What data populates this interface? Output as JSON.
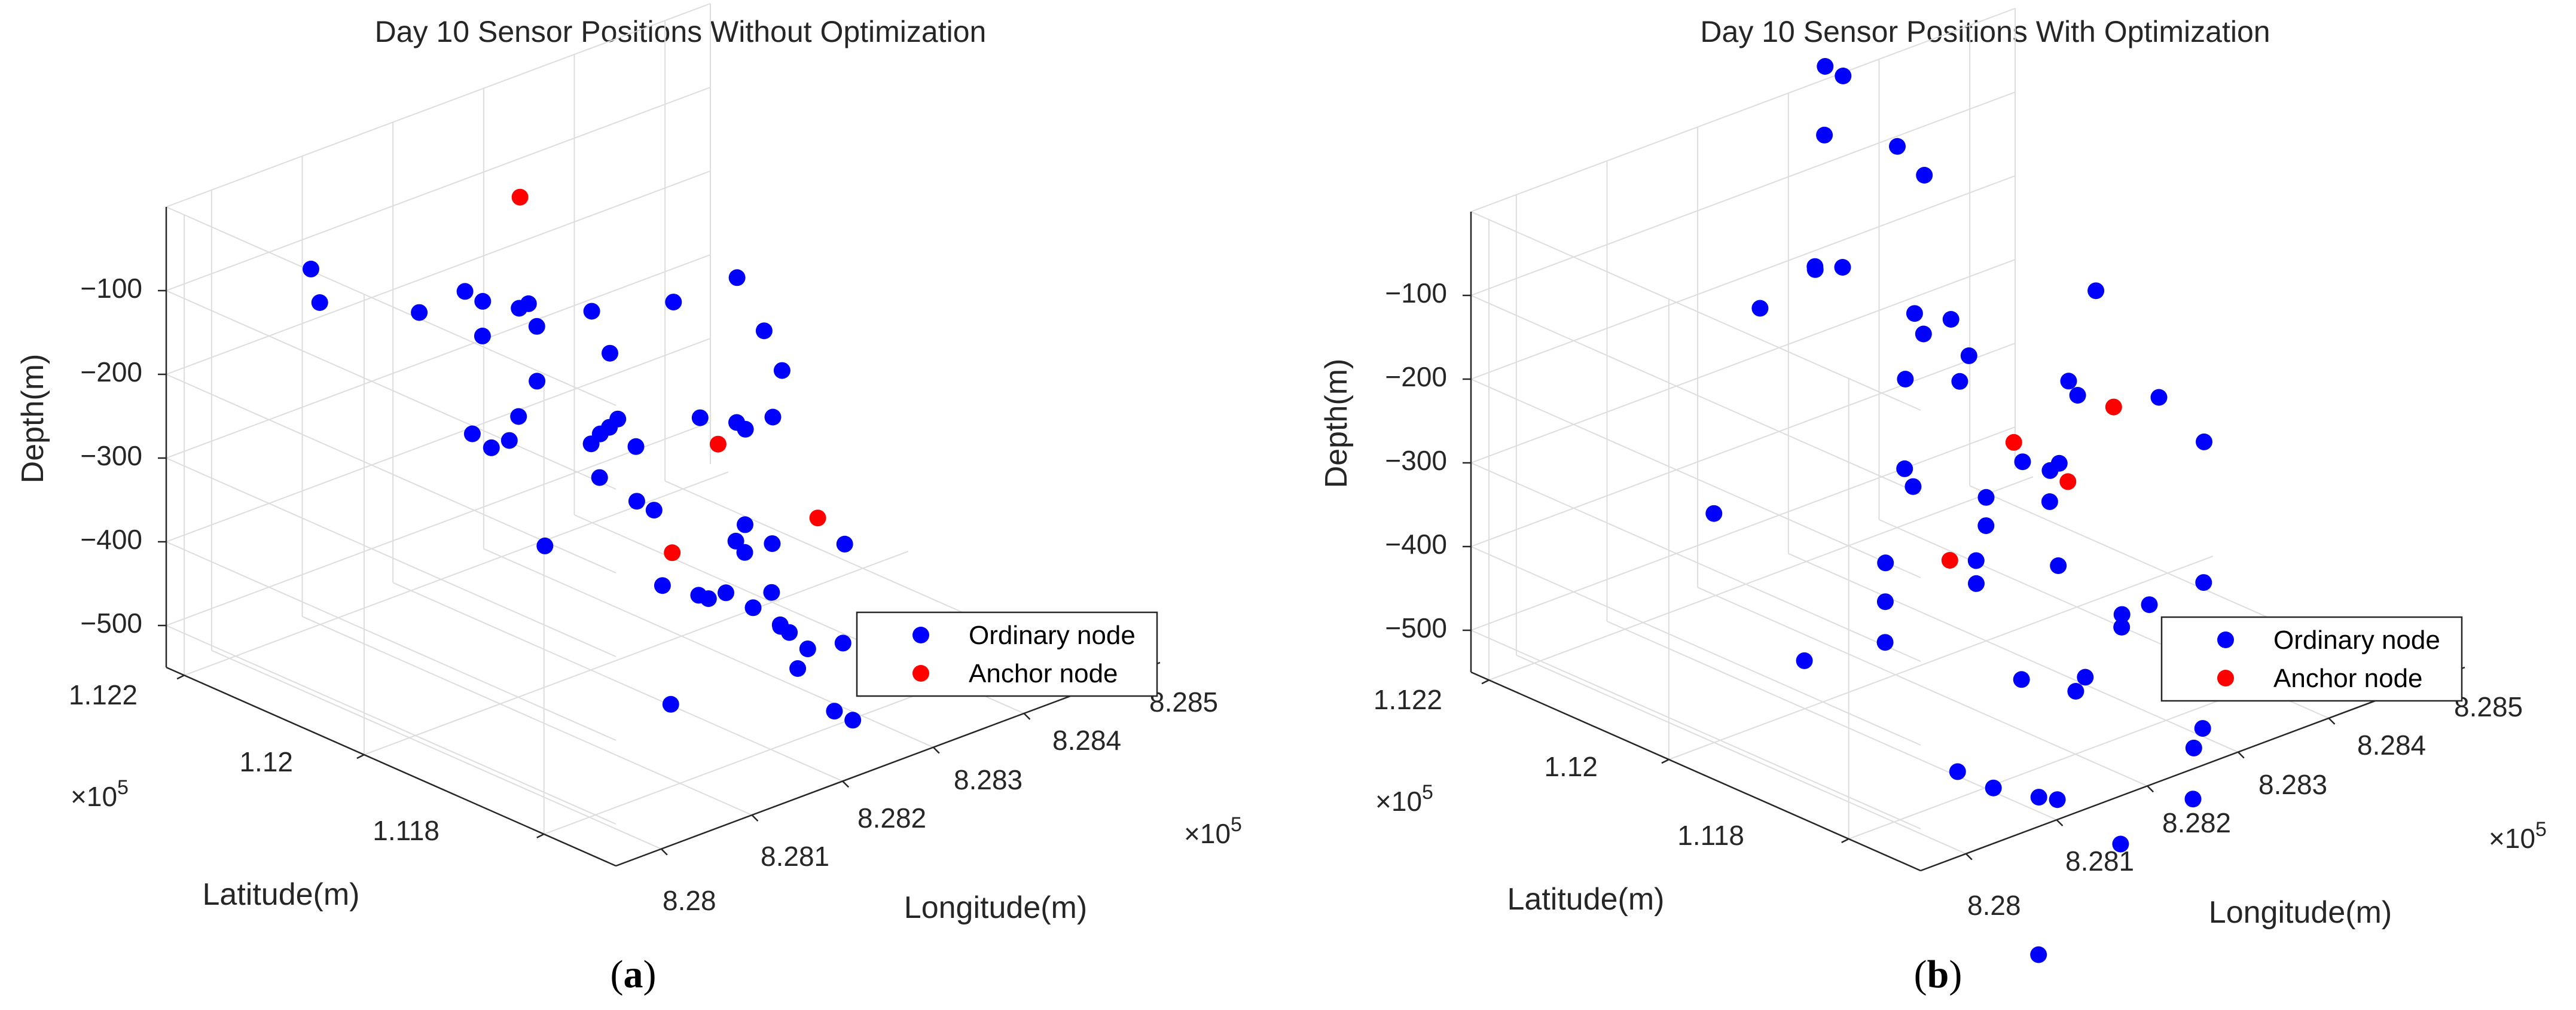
{
  "colors": {
    "ordinary": "#0000ff",
    "anchor": "#ff0000",
    "grid": "#dddddd",
    "axis": "#262626"
  },
  "chart_data": [
    {
      "type": "scatter",
      "title": "Day 10 Sensor Positions Without Optimization",
      "panel_label": "(a)",
      "panel_letter": "a",
      "xlabel": "Longitude(m)",
      "ylabel": "Latitude(m)",
      "zlabel": "Depth(m)",
      "x_multiplier": "×10",
      "x_exponent": "5",
      "y_multiplier": "×10",
      "y_exponent": "5",
      "x_ticks": [
        "8.28",
        "8.281",
        "8.282",
        "8.283",
        "8.284",
        "8.285"
      ],
      "y_ticks": [
        "1.118",
        "1.12",
        "1.122"
      ],
      "z_ticks": [
        "−100",
        "−200",
        "−300",
        "−400",
        "−500"
      ],
      "xlim": [
        8.2795,
        8.2855
      ],
      "ylim": [
        1.1172,
        1.1222
      ],
      "zlim": [
        -550,
        0
      ],
      "grid": true,
      "legend_position": "lower-right",
      "series": [
        {
          "name": "Ordinary node",
          "marker": "ordinary",
          "points": [
            [
              8.2799,
              1.1192,
              -145
            ],
            [
              8.2803,
              1.1213,
              -104
            ],
            [
              8.2806,
              1.1217,
              -95
            ],
            [
              8.2807,
              1.1178,
              -434
            ],
            [
              8.2808,
              1.1193,
              -320
            ],
            [
              8.2811,
              1.121,
              -134
            ],
            [
              8.2813,
              1.1202,
              -257
            ],
            [
              8.2814,
              1.1205,
              -284
            ],
            [
              8.2816,
              1.1204,
              -250
            ],
            [
              8.2815,
              1.1207,
              -164
            ],
            [
              8.2816,
              1.1188,
              -376
            ],
            [
              8.2817,
              1.1196,
              -289
            ],
            [
              8.2818,
              1.121,
              -149
            ],
            [
              8.2819,
              1.1187,
              -395
            ],
            [
              8.282,
              1.1197,
              -236
            ],
            [
              8.282,
              1.1206,
              -168
            ],
            [
              8.2822,
              1.1197,
              -277
            ],
            [
              8.2821,
              1.1215,
              -173
            ],
            [
              8.2821,
              1.1178,
              -448
            ],
            [
              8.2822,
              1.1208,
              -251
            ],
            [
              8.2823,
              1.1188,
              -413
            ],
            [
              8.2824,
              1.1197,
              -361
            ],
            [
              8.2824,
              1.1212,
              -191
            ],
            [
              8.2824,
              1.1204,
              -315
            ],
            [
              8.2825,
              1.1177,
              -429
            ],
            [
              8.2826,
              1.1188,
              -443
            ],
            [
              8.2826,
              1.1205,
              -316
            ],
            [
              8.2827,
              1.1186,
              -458
            ],
            [
              8.2828,
              1.1206,
              -321
            ],
            [
              8.2828,
              1.1215,
              -216
            ],
            [
              8.2829,
              1.1187,
              -480
            ],
            [
              8.283,
              1.1197,
              -491
            ],
            [
              8.283,
              1.1183,
              -559
            ],
            [
              8.2832,
              1.1192,
              -468
            ],
            [
              8.2831,
              1.119,
              -495
            ],
            [
              8.2832,
              1.1212,
              -227
            ],
            [
              8.2833,
              1.1208,
              -439
            ],
            [
              8.2834,
              1.119,
              -534
            ],
            [
              8.2834,
              1.1197,
              -452
            ],
            [
              8.2835,
              1.1213,
              -294
            ],
            [
              8.2835,
              1.1199,
              -452
            ],
            [
              8.2836,
              1.1187,
              -613
            ],
            [
              8.2838,
              1.1206,
              -350
            ],
            [
              8.2838,
              1.1201,
              -454
            ],
            [
              8.284,
              1.12,
              -480
            ],
            [
              8.2843,
              1.1214,
              -270
            ],
            [
              8.2843,
              1.1206,
              -384
            ],
            [
              8.2846,
              1.121,
              -407
            ],
            [
              8.2848,
              1.12,
              -513
            ],
            [
              8.2849,
              1.1209,
              -408
            ],
            [
              8.2852,
              1.1211,
              -374
            ],
            [
              8.2851,
              1.1215,
              -278
            ],
            [
              8.2852,
              1.1213,
              -336
            ]
          ]
        },
        {
          "name": "Anchor node",
          "marker": "anchor",
          "points": [
            [
              8.2826,
              1.1197,
              -420
            ],
            [
              8.2838,
              1.1204,
              -372
            ],
            [
              8.2835,
              1.1223,
              -155
            ],
            [
              8.2848,
              1.1203,
              -496
            ]
          ]
        }
      ]
    },
    {
      "type": "scatter",
      "title": "Day 10 Sensor Positions With Optimization",
      "panel_label": "(b)",
      "panel_letter": "b",
      "xlabel": "Longitude(m)",
      "ylabel": "Latitude(m)",
      "zlabel": "Depth(m)",
      "x_multiplier": "×10",
      "x_exponent": "5",
      "y_multiplier": "×10",
      "y_exponent": "5",
      "x_ticks": [
        "8.28",
        "8.281",
        "8.282",
        "8.283",
        "8.284",
        "8.285"
      ],
      "y_ticks": [
        "1.118",
        "1.12",
        "1.122"
      ],
      "z_ticks": [
        "−100",
        "−200",
        "−300",
        "−400",
        "−500"
      ],
      "xlim": [
        8.2795,
        8.2855
      ],
      "ylim": [
        1.1172,
        1.1222
      ],
      "zlim": [
        -550,
        0
      ],
      "grid": true,
      "legend_position": "lower-right",
      "series": [
        {
          "name": "Ordinary node",
          "marker": "ordinary",
          "points": [
            [
              8.2797,
              1.1197,
              -250
            ],
            [
              8.2801,
              1.1182,
              -349
            ],
            [
              8.2803,
              1.1184,
              -318
            ],
            [
              8.2804,
              1.1194,
              -440
            ],
            [
              8.2806,
              1.1187,
              -298
            ],
            [
              8.2806,
              1.1175,
              -510
            ],
            [
              8.2808,
              1.1181,
              -527
            ],
            [
              8.2808,
              1.1172,
              -703
            ],
            [
              8.2812,
              1.1176,
              -550
            ],
            [
              8.2812,
              1.1207,
              -113
            ],
            [
              8.2814,
              1.1192,
              -263
            ],
            [
              8.2815,
              1.1186,
              -327
            ],
            [
              8.2817,
              1.1188,
              -372
            ],
            [
              8.2819,
              1.1181,
              -605
            ],
            [
              8.2821,
              1.1187,
              -498
            ],
            [
              8.2821,
              1.12,
              -308
            ],
            [
              8.2823,
              1.1178,
              -660
            ],
            [
              8.2824,
              1.1184,
              -510
            ],
            [
              8.2825,
              1.1214,
              -149
            ],
            [
              8.2827,
              1.1197,
              -386
            ],
            [
              8.2828,
              1.1198,
              -361
            ],
            [
              8.2828,
              1.1217,
              -179
            ],
            [
              8.2829,
              1.1176,
              -621
            ],
            [
              8.283,
              1.1209,
              -280
            ],
            [
              8.2831,
              1.1193,
              -431
            ],
            [
              8.2831,
              1.119,
              -550
            ],
            [
              8.2831,
              1.1219,
              -40
            ],
            [
              8.2833,
              1.1219,
              -206
            ],
            [
              8.2833,
              1.121,
              -243
            ],
            [
              8.2834,
              1.1212,
              -232
            ],
            [
              8.2835,
              1.1201,
              -361
            ],
            [
              8.2836,
              1.1209,
              -307
            ],
            [
              8.2837,
              1.1192,
              -524
            ],
            [
              8.2837,
              1.12,
              -412
            ],
            [
              8.2838,
              1.1184,
              -611
            ],
            [
              8.2839,
              1.1211,
              -298
            ],
            [
              8.2839,
              1.1186,
              -648
            ],
            [
              8.2839,
              1.1213,
              -264
            ],
            [
              8.284,
              1.1228,
              -37
            ],
            [
              8.284,
              1.1226,
              -39
            ],
            [
              8.2841,
              1.1204,
              -410
            ],
            [
              8.2841,
              1.1196,
              -544
            ],
            [
              8.2843,
              1.1223,
              -121
            ],
            [
              8.2844,
              1.1221,
              -150
            ],
            [
              8.2844,
              1.1206,
              -423
            ],
            [
              8.2846,
              1.1198,
              -562
            ],
            [
              8.2849,
              1.121,
              -364
            ],
            [
              8.285,
              1.121,
              -385
            ],
            [
              8.2851,
              1.1197,
              -551
            ],
            [
              8.2853,
              1.1211,
              -277
            ],
            [
              8.2854,
              1.1205,
              -380
            ],
            [
              8.2856,
              1.1202,
              -427
            ]
          ]
        },
        {
          "name": "Anchor node",
          "marker": "anchor",
          "points": [
            [
              8.2824,
              1.1198,
              -420
            ],
            [
              8.2838,
              1.1205,
              -369
            ],
            [
              8.284,
              1.1201,
              -405
            ],
            [
              8.285,
              1.1206,
              -380
            ]
          ]
        }
      ]
    }
  ]
}
